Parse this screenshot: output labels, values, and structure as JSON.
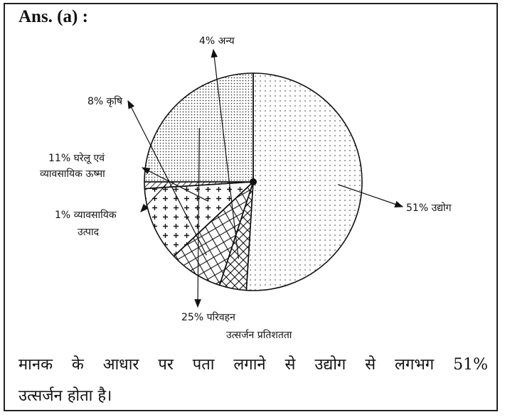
{
  "heading": "Ans. (a) :",
  "chart_data": {
    "type": "pie",
    "title": "",
    "caption": "उत्सर्जन प्रतिशतता",
    "slices": [
      {
        "label": "51% उद्योग",
        "value": 51,
        "pattern": "dots-sparse"
      },
      {
        "label": "4% अन्य",
        "value": 4,
        "pattern": "crosshatch"
      },
      {
        "label": "8% कृषि",
        "value": 8,
        "pattern": "diagonal-cross"
      },
      {
        "label_lines": [
          "11% घरेलू एवं",
          "व्यावसायिक ऊष्मा"
        ],
        "value": 11,
        "pattern": "plus"
      },
      {
        "label_lines": [
          "1% व्यावसायिक",
          "उत्पाद"
        ],
        "value": 1,
        "pattern": "hatch"
      },
      {
        "label": "25% परिवहन",
        "value": 25,
        "pattern": "dots-dense"
      }
    ]
  },
  "conclusion": {
    "line1": "मानक के आधार पर पता लगाने से उद्योग से लगभग 51%",
    "line2": "उत्सर्जन होता है।"
  }
}
